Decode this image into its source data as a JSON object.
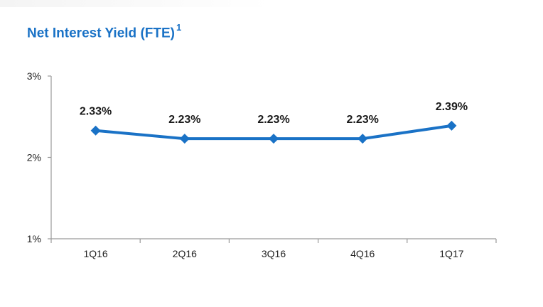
{
  "title": "Net Interest Yield (FTE)",
  "title_footnote": "1",
  "colors": {
    "title": "#1a72c6",
    "series": "#1a72c6",
    "axis": "#9a9a9a"
  },
  "chart_data": {
    "type": "line",
    "title": "Net Interest Yield (FTE)",
    "categories": [
      "1Q16",
      "2Q16",
      "3Q16",
      "4Q16",
      "1Q17"
    ],
    "series": [
      {
        "values": [
          2.33,
          2.23,
          2.23,
          2.23,
          2.39
        ],
        "labels": [
          "2.33%",
          "2.23%",
          "2.23%",
          "2.23%",
          "2.39%"
        ]
      }
    ],
    "ylim": [
      1,
      3
    ],
    "yticks": [
      1,
      2,
      3
    ],
    "ytick_labels": [
      "1%",
      "2%",
      "3%"
    ],
    "xlabel": "",
    "ylabel": "",
    "grid": false,
    "marker": "diamond",
    "data_labels": true
  }
}
